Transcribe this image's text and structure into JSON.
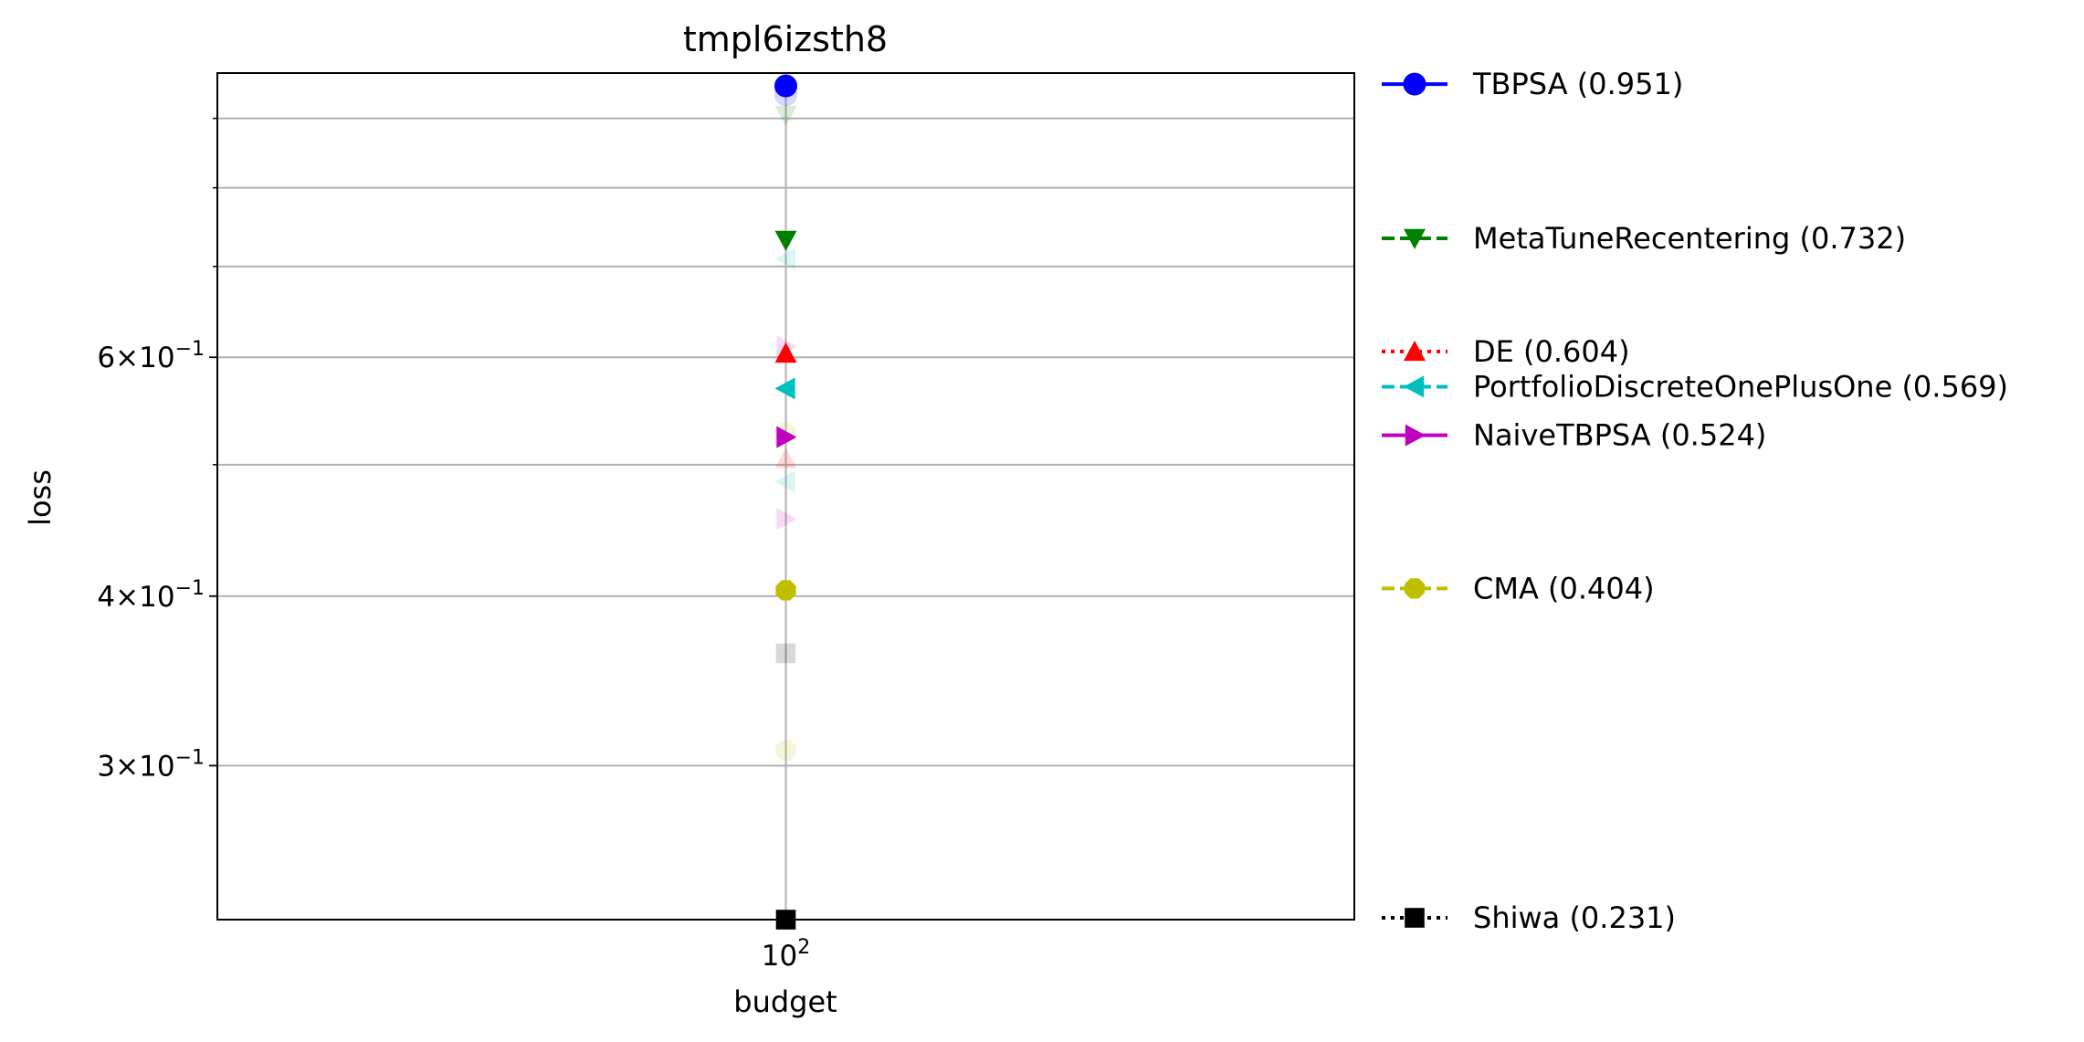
{
  "chart_data": {
    "type": "scatter",
    "title": "tmpl6izsth8",
    "xlabel": "budget",
    "ylabel": "loss",
    "x_scale": "log",
    "y_scale": "log",
    "x_ticks": [
      {
        "value": 100,
        "base": "10",
        "exp": "2"
      }
    ],
    "y_ticks": [
      {
        "value": 0.3,
        "mant": "3",
        "exp": "−1"
      },
      {
        "value": 0.4,
        "mant": "4",
        "exp": "−1"
      },
      {
        "value": 0.6,
        "mant": "6",
        "exp": "−1"
      }
    ],
    "y_minor_gridlines": [
      0.5,
      0.7,
      0.8,
      0.9
    ],
    "ylim": [
      0.231,
      0.972
    ],
    "grid": true,
    "legend_placement": "outside right",
    "series": [
      {
        "name": "TBPSA (0.951)",
        "color": "#0000ff",
        "marker": "circle",
        "linestyle": "solid",
        "x": [
          100
        ],
        "y": [
          0.951
        ]
      },
      {
        "name": "MetaTuneRecentering (0.732)",
        "color": "#008000",
        "marker": "triangle-down",
        "linestyle": "dashed",
        "x": [
          100
        ],
        "y": [
          0.732
        ]
      },
      {
        "name": "DE (0.604)",
        "color": "#ff0000",
        "marker": "triangle-up",
        "linestyle": "dotted",
        "x": [
          100
        ],
        "y": [
          0.604
        ]
      },
      {
        "name": "PortfolioDiscreteOnePlusOne (0.569)",
        "color": "#00bfbf",
        "marker": "triangle-left",
        "linestyle": "dashed",
        "x": [
          100
        ],
        "y": [
          0.569
        ]
      },
      {
        "name": "NaiveTBPSA (0.524)",
        "color": "#bf00bf",
        "marker": "triangle-right",
        "linestyle": "solid",
        "x": [
          100
        ],
        "y": [
          0.524
        ]
      },
      {
        "name": "CMA (0.404)",
        "color": "#bfbf00",
        "marker": "octagon",
        "linestyle": "dashed",
        "x": [
          100
        ],
        "y": [
          0.404
        ]
      },
      {
        "name": "Shiwa (0.231)",
        "color": "#000000",
        "marker": "square",
        "linestyle": "dotted",
        "x": [
          100
        ],
        "y": [
          0.231
        ]
      }
    ],
    "faded_points": [
      {
        "color": "#0000ff",
        "marker": "circle",
        "x": 100,
        "y": 0.937
      },
      {
        "color": "#008000",
        "marker": "triangle-down",
        "x": 100,
        "y": 0.905
      },
      {
        "color": "#00bfbf",
        "marker": "triangle-left",
        "x": 100,
        "y": 0.709
      },
      {
        "color": "#bf00bf",
        "marker": "triangle-right",
        "x": 100,
        "y": 0.611
      },
      {
        "color": "#bfbf00",
        "marker": "octagon",
        "x": 100,
        "y": 0.528
      },
      {
        "color": "#ff0000",
        "marker": "triangle-up",
        "x": 100,
        "y": 0.505
      },
      {
        "color": "#00bfbf",
        "marker": "triangle-left",
        "x": 100,
        "y": 0.486
      },
      {
        "color": "#bf00bf",
        "marker": "triangle-right",
        "x": 100,
        "y": 0.456
      },
      {
        "color": "#000000",
        "marker": "square",
        "x": 100,
        "y": 0.363
      },
      {
        "color": "#bfbf00",
        "marker": "octagon",
        "x": 100,
        "y": 0.308
      }
    ]
  }
}
